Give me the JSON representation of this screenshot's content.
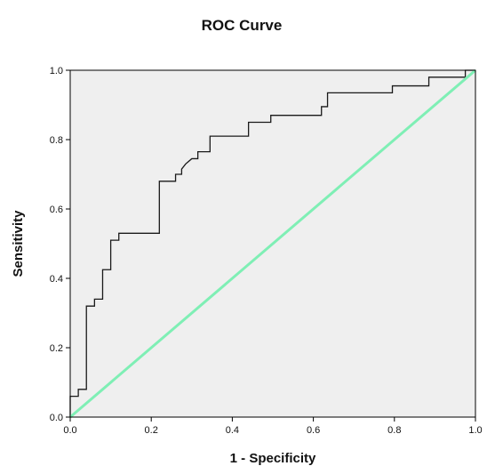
{
  "chart_data": {
    "type": "line",
    "title": "ROC Curve",
    "xlabel": "1 - Specificity",
    "ylabel": "Sensitivity",
    "xlim": [
      0,
      1
    ],
    "ylim": [
      0,
      1
    ],
    "xticks": [
      "0.0",
      "0.2",
      "0.4",
      "0.6",
      "0.8",
      "1.0"
    ],
    "yticks": [
      "0.0",
      "0.2",
      "0.4",
      "0.6",
      "0.8",
      "1.0"
    ],
    "grid": false,
    "legend": "none",
    "colors": {
      "plot_background": "#efefef",
      "roc_curve": "#1a1a1a",
      "reference_line": "#7fefb5",
      "frame": "#000000"
    },
    "series": [
      {
        "type": "step",
        "x": [
          0.0,
          0.0,
          0.02,
          0.02,
          0.04,
          0.04,
          0.06,
          0.06,
          0.08,
          0.08,
          0.1,
          0.1,
          0.12,
          0.12,
          0.14,
          0.14,
          0.22,
          0.22,
          0.26,
          0.26,
          0.275,
          0.275,
          0.285,
          0.29,
          0.3,
          0.315,
          0.315,
          0.33,
          0.33,
          0.345,
          0.345,
          0.36,
          0.36,
          0.4,
          0.4,
          0.42,
          0.42,
          0.44,
          0.44,
          0.495,
          0.495,
          0.6,
          0.6,
          0.62,
          0.62,
          0.635,
          0.635,
          0.795,
          0.795,
          0.885,
          0.885,
          0.975,
          0.975,
          1.0
        ],
        "y": [
          0.0,
          0.06,
          0.06,
          0.08,
          0.08,
          0.32,
          0.32,
          0.34,
          0.34,
          0.425,
          0.425,
          0.51,
          0.51,
          0.53,
          0.53,
          0.53,
          0.53,
          0.68,
          0.68,
          0.7,
          0.7,
          0.715,
          0.73,
          0.735,
          0.745,
          0.745,
          0.765,
          0.765,
          0.765,
          0.765,
          0.81,
          0.81,
          0.81,
          0.81,
          0.81,
          0.81,
          0.81,
          0.81,
          0.85,
          0.85,
          0.87,
          0.87,
          0.87,
          0.87,
          0.895,
          0.895,
          0.935,
          0.935,
          0.955,
          0.955,
          0.98,
          0.98,
          1.0,
          1.0
        ]
      },
      {
        "type": "reference",
        "x": [
          0.0,
          1.0
        ],
        "y": [
          0.0,
          1.0
        ]
      }
    ]
  }
}
